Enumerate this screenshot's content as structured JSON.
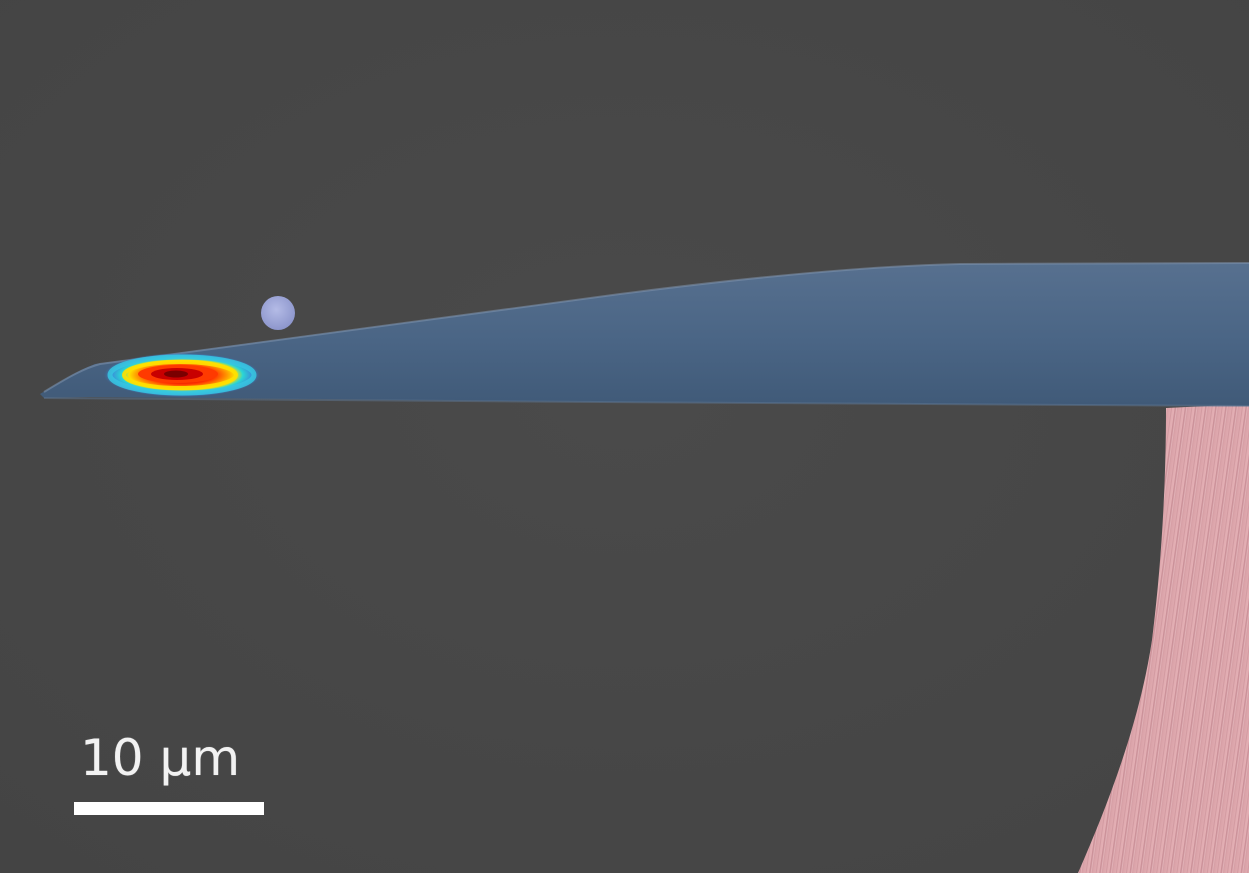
{
  "image": {
    "background_color": "#474747",
    "waveguide_color": "#4a6585",
    "particle_color": "#9aa3d6",
    "fiber_color": "#d9a0a6",
    "mode_profile_colors": [
      "#c80000",
      "#ff3300",
      "#ffd400",
      "#2ad6d6",
      "#3a8fd8"
    ]
  },
  "scale_bar": {
    "label": "10 µm"
  }
}
